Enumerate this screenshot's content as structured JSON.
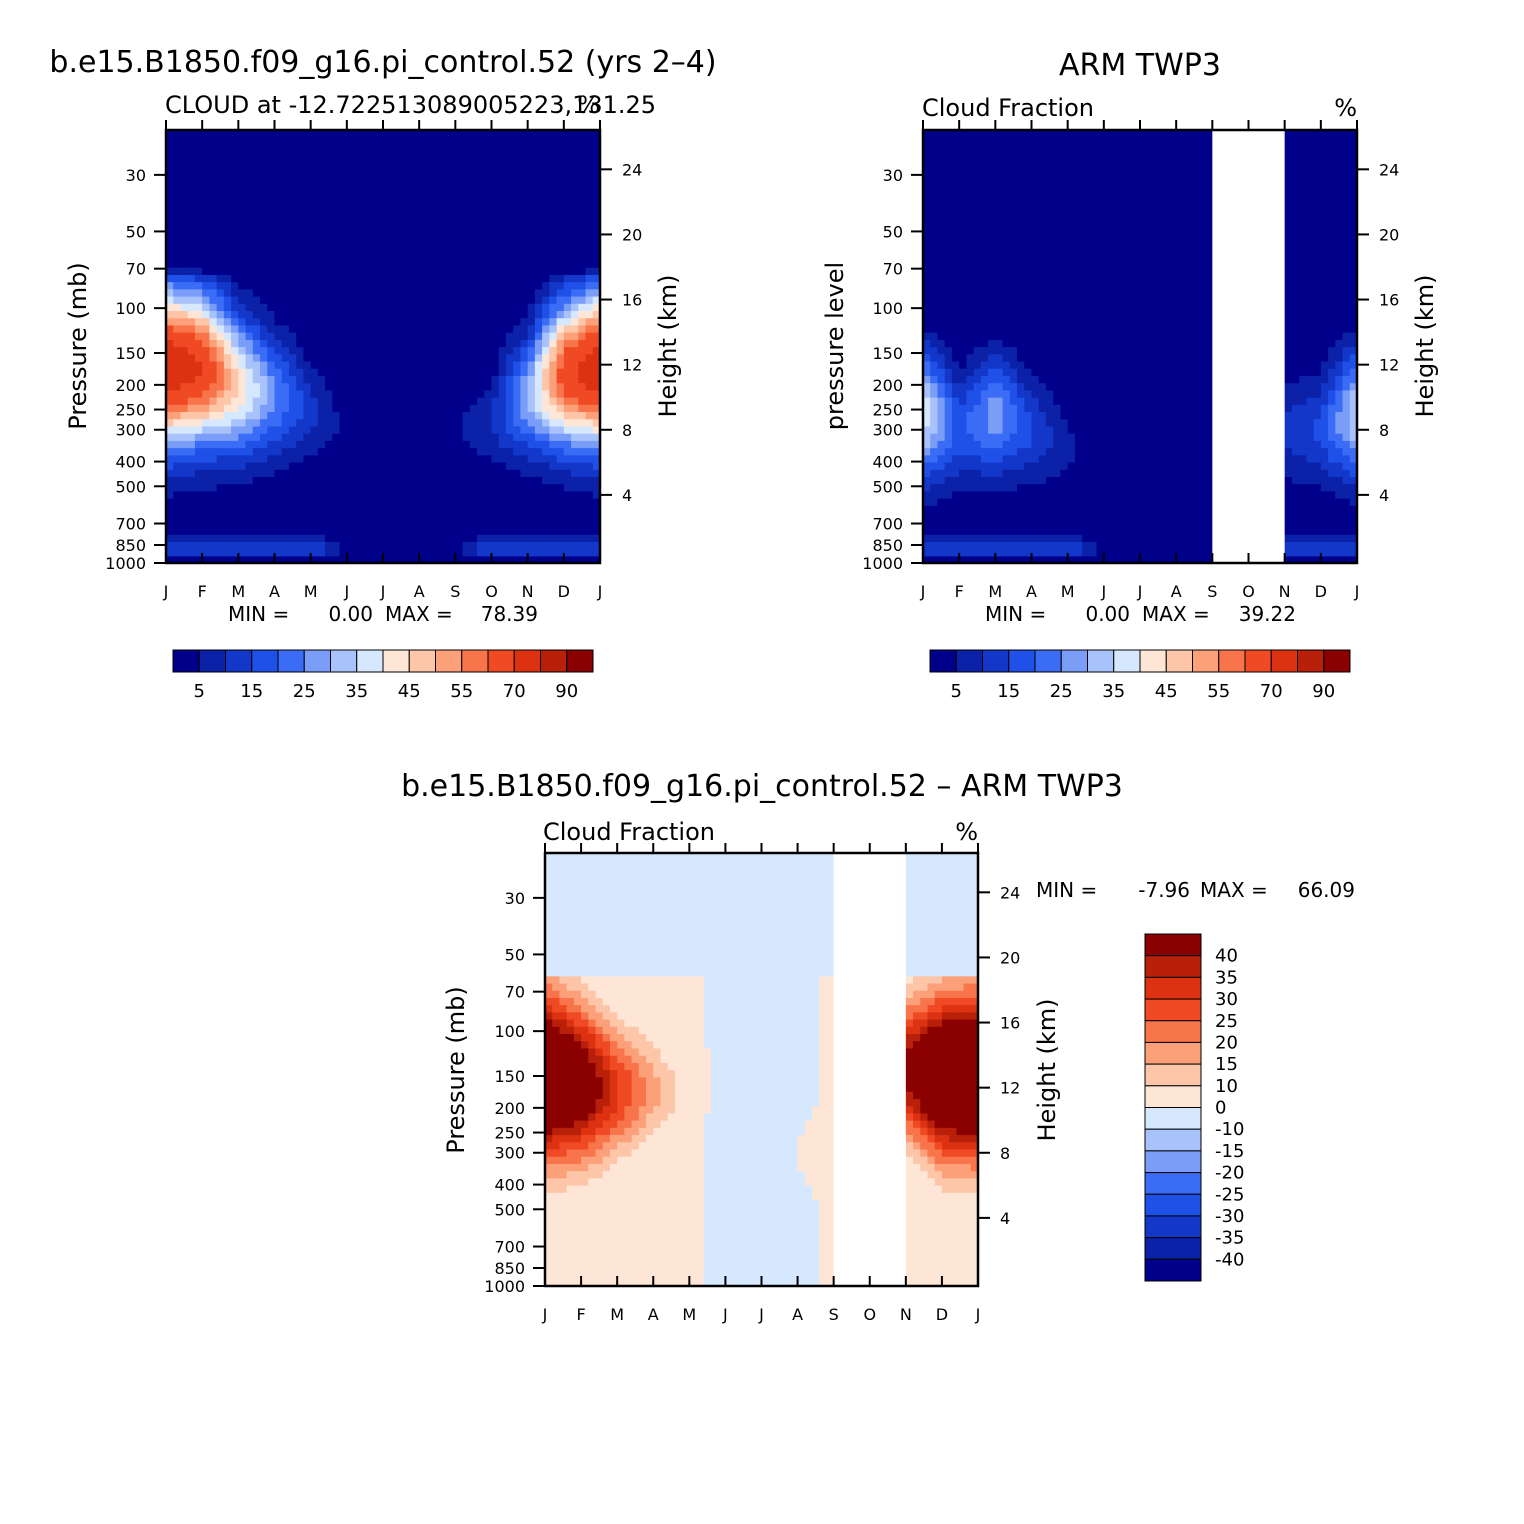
{
  "chart_data": [
    {
      "type": "heatmap",
      "title": "b.e15.B1850.f09_g16.pi_control.52 (yrs 2–4)",
      "subtitle_left": "CLOUD at -12.722513089005223,131.25",
      "subtitle_right": "%",
      "ylabel": "Pressure (mb)",
      "ylabel_right": "Height (km)",
      "x_ticks": [
        "J",
        "F",
        "M",
        "A",
        "M",
        "J",
        "J",
        "A",
        "S",
        "O",
        "N",
        "D",
        "J"
      ],
      "y_ticks": [
        30,
        50,
        70,
        100,
        150,
        200,
        250,
        300,
        400,
        500,
        700,
        850,
        1000
      ],
      "y_right_ticks": [
        24,
        20,
        16,
        12,
        8,
        4
      ],
      "ylim": [
        1000,
        20
      ],
      "y_scale": "log",
      "stats": {
        "min_label": "MIN =",
        "min": "0.00",
        "max_label": "MAX =",
        "max": "78.39"
      },
      "missing_months": [],
      "profiles": [
        {
          "x": 0,
          "base": 850,
          "top": 80,
          "peak_p": 170,
          "peak": 78,
          "thick": 1.0
        },
        {
          "x": 1,
          "base": 850,
          "top": 80,
          "peak_p": 170,
          "peak": 70,
          "thick": 0.95
        },
        {
          "x": 2,
          "base": 850,
          "top": 80,
          "peak_p": 200,
          "peak": 45,
          "thick": 0.85
        },
        {
          "x": 3,
          "base": 800,
          "top": 80,
          "peak_p": 220,
          "peak": 26,
          "thick": 0.7
        },
        {
          "x": 4,
          "base": 750,
          "top": 110,
          "peak_p": 250,
          "peak": 12,
          "thick": 0.5
        },
        {
          "x": 5,
          "base": 750,
          "top": 125,
          "peak_p": 300,
          "peak": 3,
          "thick": 0.2
        },
        {
          "x": 6,
          "base": 750,
          "top": 125,
          "peak_p": 300,
          "peak": 3,
          "thick": 0.2
        },
        {
          "x": 7,
          "base": 750,
          "top": 125,
          "peak_p": 300,
          "peak": 3,
          "thick": 0.2
        },
        {
          "x": 8,
          "base": 750,
          "top": 120,
          "peak_p": 300,
          "peak": 4,
          "thick": 0.2
        },
        {
          "x": 9,
          "base": 750,
          "top": 110,
          "peak_p": 280,
          "peak": 10,
          "thick": 0.45
        },
        {
          "x": 10,
          "base": 800,
          "top": 85,
          "peak_p": 220,
          "peak": 30,
          "thick": 0.7
        },
        {
          "x": 11,
          "base": 850,
          "top": 80,
          "peak_p": 180,
          "peak": 65,
          "thick": 0.9
        },
        {
          "x": 12,
          "base": 850,
          "top": 80,
          "peak_p": 170,
          "peak": 78,
          "thick": 1.0
        }
      ]
    },
    {
      "type": "heatmap",
      "title": "ARM TWP3",
      "subtitle_left": "Cloud Fraction",
      "subtitle_right": "%",
      "ylabel": "pressure level",
      "ylabel_right": "Height (km)",
      "x_ticks": [
        "J",
        "F",
        "M",
        "A",
        "M",
        "J",
        "J",
        "A",
        "S",
        "O",
        "N",
        "D",
        "J"
      ],
      "y_ticks": [
        30,
        50,
        70,
        100,
        150,
        200,
        250,
        300,
        400,
        500,
        700,
        850,
        1000
      ],
      "y_right_ticks": [
        24,
        20,
        16,
        12,
        8,
        4
      ],
      "ylim": [
        1000,
        20
      ],
      "y_scale": "log",
      "stats": {
        "min_label": "MIN =",
        "min": "0.00",
        "max_label": "MAX =",
        "max": "39.22"
      },
      "missing_months": [
        8,
        10
      ],
      "profiles": [
        {
          "x": 0,
          "base": 900,
          "top": 130,
          "peak_p": 260,
          "peak": 39,
          "thick": 0.8
        },
        {
          "x": 1,
          "base": 900,
          "top": 150,
          "peak_p": 300,
          "peak": 18,
          "thick": 0.6
        },
        {
          "x": 2,
          "base": 900,
          "top": 120,
          "peak_p": 260,
          "peak": 28,
          "thick": 0.7
        },
        {
          "x": 3,
          "base": 880,
          "top": 140,
          "peak_p": 300,
          "peak": 16,
          "thick": 0.55
        },
        {
          "x": 4,
          "base": 800,
          "top": 200,
          "peak_p": 350,
          "peak": 6,
          "thick": 0.4
        },
        {
          "x": 5,
          "base": 750,
          "top": 400,
          "peak_p": 500,
          "peak": 2,
          "thick": 0.2
        },
        {
          "x": 6,
          "base": 750,
          "top": 500,
          "peak_p": 600,
          "peak": 1,
          "thick": 0.1
        },
        {
          "x": 7,
          "base": 750,
          "top": 500,
          "peak_p": 600,
          "peak": 1,
          "thick": 0.1
        },
        {
          "x": 8,
          "base": 750,
          "top": 500,
          "peak_p": 600,
          "peak": 1,
          "thick": 0.1
        },
        {
          "x": 11,
          "base": 900,
          "top": 150,
          "peak_p": 300,
          "peak": 16,
          "thick": 0.6
        },
        {
          "x": 12,
          "base": 900,
          "top": 130,
          "peak_p": 260,
          "peak": 36,
          "thick": 0.8
        }
      ]
    },
    {
      "type": "heatmap",
      "title": "b.e15.B1850.f09_g16.pi_control.52 – ARM TWP3",
      "subtitle_left": "Cloud Fraction",
      "subtitle_right": "%",
      "ylabel": "Pressure (mb)",
      "ylabel_right": "Height (km)",
      "x_ticks": [
        "J",
        "F",
        "M",
        "A",
        "M",
        "J",
        "J",
        "A",
        "S",
        "O",
        "N",
        "D",
        "J"
      ],
      "y_ticks": [
        30,
        50,
        70,
        100,
        150,
        200,
        250,
        300,
        400,
        500,
        700,
        850,
        1000
      ],
      "y_right_ticks": [
        24,
        20,
        16,
        12,
        8,
        4
      ],
      "ylim": [
        1000,
        20
      ],
      "y_scale": "log",
      "stats": {
        "min_label": "MIN =",
        "min": "-7.96",
        "max_label": "MAX =",
        "max": "66.09"
      },
      "missing_months": [
        8,
        10
      ],
      "profiles": [
        {
          "x": 0,
          "base": 400,
          "top": 80,
          "peak_p": 150,
          "peak": 60,
          "thick": 1.1,
          "bg": 2
        },
        {
          "x": 1,
          "base": 500,
          "top": 85,
          "peak_p": 160,
          "peak": 50,
          "thick": 1.0,
          "bg": 1
        },
        {
          "x": 2,
          "base": 350,
          "top": 95,
          "peak_p": 170,
          "peak": 30,
          "thick": 0.8,
          "bg": 1
        },
        {
          "x": 3,
          "base": 300,
          "top": 110,
          "peak_p": 170,
          "peak": 15,
          "thick": 0.6,
          "bg": 2
        },
        {
          "x": 4,
          "base": 250,
          "top": 120,
          "peak_p": 170,
          "peak": 5,
          "thick": 0.4,
          "bg": 1
        },
        {
          "x": 5,
          "base": 300,
          "top": 150,
          "peak_p": 200,
          "peak": -3,
          "thick": 0.5,
          "bg": -2
        },
        {
          "x": 6,
          "base": 400,
          "top": 150,
          "peak_p": 250,
          "peak": -3,
          "thick": 0.5,
          "bg": -2
        },
        {
          "x": 7,
          "base": 400,
          "top": 200,
          "peak_p": 300,
          "peak": 2,
          "thick": 0.4,
          "bg": -2
        },
        {
          "x": 8,
          "base": 500,
          "top": 200,
          "peak_p": 300,
          "peak": 2,
          "thick": 0.4,
          "bg": 1
        },
        {
          "x": 10,
          "base": 450,
          "top": 80,
          "peak_p": 140,
          "peak": 40,
          "thick": 0.8,
          "bg": 2
        },
        {
          "x": 11,
          "base": 400,
          "top": 80,
          "peak_p": 150,
          "peak": 60,
          "thick": 1.0,
          "bg": 3
        },
        {
          "x": 12,
          "base": 400,
          "top": 80,
          "peak_p": 150,
          "peak": 60,
          "thick": 1.1,
          "bg": 2
        }
      ]
    }
  ],
  "colorbars": {
    "abs": {
      "orientation": "horizontal",
      "levels": [
        5,
        10,
        15,
        20,
        25,
        30,
        35,
        40,
        45,
        50,
        55,
        60,
        70,
        80,
        90
      ],
      "labels": [
        "5",
        "15",
        "25",
        "35",
        "45",
        "55",
        "70",
        "90"
      ],
      "colors": [
        "#00008b",
        "#0a21a8",
        "#1337c8",
        "#1f51e8",
        "#3a6cf5",
        "#7a9ef8",
        "#a8c3fb",
        "#d6e8fe",
        "#fde6d6",
        "#fdc6a8",
        "#fca07a",
        "#f8744a",
        "#f04a24",
        "#dc3212",
        "#b8200a",
        "#8b0000"
      ]
    },
    "diff": {
      "orientation": "vertical",
      "levels": [
        -40,
        -35,
        -30,
        -25,
        -20,
        -15,
        -10,
        0,
        10,
        15,
        20,
        25,
        30,
        35,
        40
      ],
      "labels": [
        "40",
        "35",
        "30",
        "25",
        "20",
        "15",
        "10",
        "0",
        "-10",
        "-15",
        "-20",
        "-25",
        "-30",
        "-35",
        "-40"
      ],
      "colors": [
        "#00008b",
        "#0a21a8",
        "#1337c8",
        "#1f51e8",
        "#3a6cf5",
        "#7a9ef8",
        "#a8c3fb",
        "#d6e8fe",
        "#fde6d6",
        "#fdc6a8",
        "#fca07a",
        "#f8744a",
        "#f04a24",
        "#dc3212",
        "#b8200a",
        "#8b0000"
      ]
    }
  }
}
